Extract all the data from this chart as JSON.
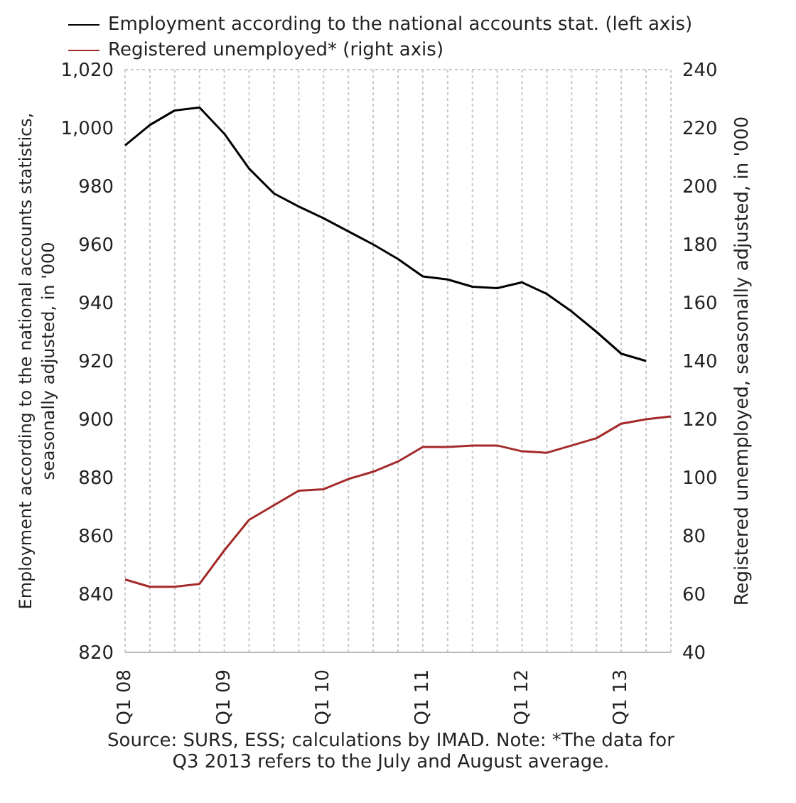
{
  "chart_data": {
    "type": "line",
    "categories": [
      "Q1 08",
      null,
      null,
      null,
      "Q1 09",
      null,
      null,
      null,
      "Q1 10",
      null,
      null,
      null,
      "Q1 11",
      null,
      null,
      null,
      "Q1 12",
      null,
      null,
      null,
      "Q1 13",
      null,
      null
    ],
    "series": [
      {
        "name": "Employment according to the national accounts stat. (left axis)",
        "color": "#000000",
        "values": [
          994,
          1001,
          1006,
          1007,
          998,
          986,
          977.5,
          973,
          969,
          964.5,
          960,
          955,
          949,
          948,
          945.5,
          945,
          947,
          943,
          937,
          930,
          922.5,
          920,
          null
        ]
      },
      {
        "name": "Registered unemployed* (right axis)",
        "color": "#a52a2a",
        "axis": "y2",
        "values": [
          65,
          62.5,
          62.5,
          63.5,
          75,
          85.5,
          90.5,
          95.5,
          96,
          99.5,
          102,
          105.5,
          110.5,
          110.5,
          111,
          111,
          109,
          108.5,
          111,
          113.5,
          118.5,
          120,
          121
        ]
      }
    ],
    "ylabel": "Employment according to the national accounts statistics, seasonally adjusted, in '000",
    "y2label": "Registered unemployed, seasonally adjusted, in '000",
    "ylim": [
      820,
      1020
    ],
    "yticks": [
      820,
      840,
      860,
      880,
      900,
      920,
      940,
      960,
      980,
      {
        "value": 1000,
        "label": "1,000"
      },
      {
        "value": 1020,
        "label": "1,020"
      }
    ],
    "y2lim": [
      40,
      240
    ],
    "y2ticks": [
      40,
      60,
      80,
      100,
      120,
      140,
      160,
      180,
      200,
      220,
      240
    ],
    "grid": true,
    "legend": "top",
    "marker": "none",
    "line_style": "solid",
    "annotations": [
      "Source: SURS, ESS; calculations by IMAD. Note: *The data for Q3 2013 refers to the July and August average."
    ]
  }
}
